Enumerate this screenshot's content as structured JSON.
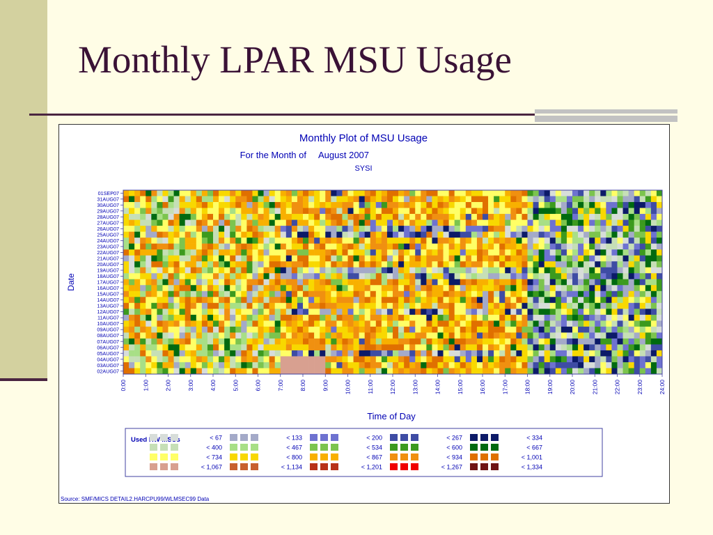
{
  "slide": {
    "title": "Monthly LPAR MSU Usage"
  },
  "chart_data": {
    "type": "heatmap",
    "title": "Monthly Plot of MSU Usage",
    "subtitle_prefix": "For the Month of",
    "subtitle_month": "August 2007",
    "system": "SYSI",
    "xlabel": "Time of Day",
    "ylabel": "Date",
    "x_ticks": [
      "0:00",
      "1:00",
      "2:00",
      "3:00",
      "4:00",
      "5:00",
      "6:00",
      "7:00",
      "8:00",
      "9:00",
      "10:00",
      "11:00",
      "12:00",
      "13:00",
      "14:00",
      "15:00",
      "16:00",
      "17:00",
      "18:00",
      "19:00",
      "20:00",
      "21:00",
      "22:00",
      "23:00",
      "24:00"
    ],
    "y_ticks": [
      "01SEP07",
      "31AUG07",
      "30AUG07",
      "29AUG07",
      "28AUG07",
      "27AUG07",
      "26AUG07",
      "25AUG07",
      "24AUG07",
      "23AUG07",
      "22AUG07",
      "21AUG07",
      "20AUG07",
      "19AUG07",
      "18AUG07",
      "17AUG07",
      "16AUG07",
      "15AUG07",
      "14AUG07",
      "13AUG07",
      "12AUG07",
      "11AUG07",
      "10AUG07",
      "09AUG07",
      "08AUG07",
      "07AUG07",
      "06AUG07",
      "05AUG07",
      "04AUG07",
      "03AUG07",
      "02AUG07"
    ],
    "legend_title": "Used HW MSUs",
    "legend": [
      {
        "label": "< 67",
        "color": "#d7ddd9"
      },
      {
        "label": "< 133",
        "color": "#a4aac8"
      },
      {
        "label": "< 200",
        "color": "#6e72d0"
      },
      {
        "label": "< 267",
        "color": "#3e4ca4"
      },
      {
        "label": "< 334",
        "color": "#0c1a68"
      },
      {
        "label": "< 400",
        "color": "#c6dfb6"
      },
      {
        "label": "< 467",
        "color": "#a8df86"
      },
      {
        "label": "< 534",
        "color": "#7cc44e"
      },
      {
        "label": "< 600",
        "color": "#3c9a1e"
      },
      {
        "label": "< 667",
        "color": "#006a10"
      },
      {
        "label": "< 734",
        "color": "#ffff66"
      },
      {
        "label": "< 800",
        "color": "#f8d800"
      },
      {
        "label": "< 867",
        "color": "#f8b000"
      },
      {
        "label": "< 934",
        "color": "#f09010"
      },
      {
        "label": "< 1,001",
        "color": "#e07000"
      },
      {
        "label": "< 1,067",
        "color": "#d8a090"
      },
      {
        "label": "< 1,134",
        "color": "#c8602e"
      },
      {
        "label": "< 1,201",
        "color": "#b83218"
      },
      {
        "label": "< 1,267",
        "color": "#f00000"
      },
      {
        "label": "< 1,334",
        "color": "#6e1414"
      }
    ],
    "source": "Source:  SMF/MICS  DETAIL2.HARCPU99/WLMSEC99  Data",
    "grid": false,
    "legend_placement": "bottom"
  }
}
